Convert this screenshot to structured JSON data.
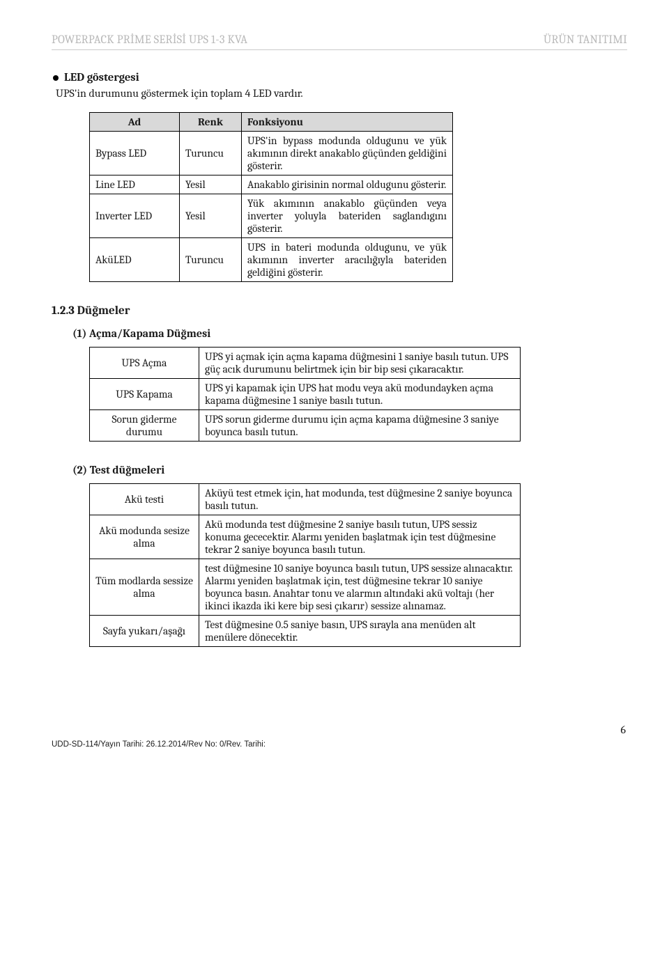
{
  "header": {
    "left": "POWERPACK PRİME SERİSİ UPS 1-3 KVA",
    "right": "ÜRÜN TANITIMI"
  },
  "section1": {
    "title": "LED göstergesi",
    "intro": "UPS'in  durumunu göstermek için toplam 4 LED vardır."
  },
  "table1": {
    "headers": [
      "Ad",
      "Renk",
      "Fonksiyonu"
    ],
    "rows": [
      [
        "Bypass LED",
        "Turuncu",
        "UPS'in bypass modunda oldugunu ve yük akımının direkt anakablo güçünden geldiğini gösterir."
      ],
      [
        "Line LED",
        "Yesil",
        "Anakablo girisinin normal oldugunu gösterir."
      ],
      [
        "Inverter LED",
        "Yesil",
        "Yük akımının anakablo güçünden veya inverter yoluyla bateriden saglandıgını gösterir."
      ],
      [
        "AküLED",
        "Turuncu",
        "UPS in bateri modunda oldugunu, ve yük akımının inverter aracılığıyla bateriden geldiğini gösterir."
      ]
    ]
  },
  "section2": {
    "title": "1.2.3 Düğmeler",
    "sub1": "(1) Açma/Kapama Düğmesi",
    "sub2": "(2) Test düğmeleri"
  },
  "table2": {
    "rows": [
      [
        "UPS Açma",
        "UPS yi açmak için açma kapama düğmesini 1 saniye basılı tutun. UPS güç acık durumunu belirtmek için bir bip sesi çıkaracaktır."
      ],
      [
        "UPS Kapama",
        "UPS yi kapamak için UPS hat modu veya akü modundayken açma kapama düğmesine 1 saniye basılı tutun."
      ],
      [
        "Sorun giderme durumu",
        "UPS sorun giderme durumu için açma kapama düğmesine 3 saniye boyunca basılı tutun."
      ]
    ]
  },
  "table3": {
    "rows": [
      [
        "Akü testi",
        "Aküyü test etmek için, hat modunda, test düğmesine 2 saniye boyunca basılı tutun."
      ],
      [
        "Akü modunda sesize alma",
        "Akü modunda test düğmesine 2 saniye basılı tutun, UPS sessiz konuma gececektir. Alarmı yeniden başlatmak için test düğmesine tekrar 2 saniye boyunca basılı tutun."
      ],
      [
        "Tüm modlarda sessize alma",
        "test düğmesine 10 saniye boyunca basılı tutun, UPS sessize alınacaktır. Alarmı yeniden başlatmak için,  test düğmesine tekrar 10 saniye boyunca basın. Anahtar tonu ve alarmın altındaki akü voltajı (her ikinci ikazda iki kere bip sesi çıkarır) sessize alınamaz."
      ],
      [
        "Sayfa yukarı/aşağı",
        "Test  düğmesine  0.5 saniye basın, UPS  sırayla ana menüden alt menülere dönecektir."
      ]
    ]
  },
  "footer": {
    "page": "6",
    "doc": "UDD-SD-114/Yayın Tarihi: 26.12.2014/Rev No: 0/Rev. Tarihi:"
  }
}
